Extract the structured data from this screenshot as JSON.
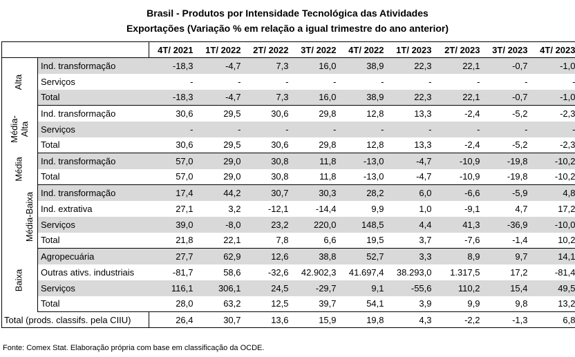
{
  "title_line1": "Brasil - Produtos por Intensidade Tecnológica das Atividades",
  "title_line2": "Exportações (Variação % em relação a igual trimestre do ano anterior)",
  "columns": [
    "4T/ 2021",
    "1T/ 2022",
    "2T/ 2022",
    "3T/ 2022",
    "4T/ 2022",
    "1T/ 2023",
    "2T/ 2023",
    "3T/ 2023",
    "4T/ 2023"
  ],
  "groups": [
    {
      "label": "Alta",
      "rows": [
        {
          "label": "Ind. transformação",
          "shade": true,
          "values": [
            "-18,3",
            "-4,7",
            "7,3",
            "16,0",
            "38,9",
            "22,3",
            "22,1",
            "-0,7",
            "-1,0"
          ]
        },
        {
          "label": "Serviços",
          "shade": false,
          "values": [
            "-",
            "-",
            "-",
            "-",
            "-",
            "-",
            "-",
            "-",
            "-"
          ]
        },
        {
          "label": "Total",
          "shade": true,
          "values": [
            "-18,3",
            "-4,7",
            "7,3",
            "16,0",
            "38,9",
            "22,3",
            "22,1",
            "-0,7",
            "-1,0"
          ]
        }
      ]
    },
    {
      "label": "Média-Alta",
      "label_a": "Média-",
      "label_b": "Alta",
      "rows": [
        {
          "label": "Ind. transformação",
          "shade": false,
          "values": [
            "30,6",
            "29,5",
            "30,6",
            "29,8",
            "12,8",
            "13,3",
            "-2,4",
            "-5,2",
            "-2,3"
          ]
        },
        {
          "label": "Serviços",
          "shade": true,
          "values": [
            "-",
            "-",
            "-",
            "-",
            "-",
            "-",
            "-",
            "-",
            "-"
          ]
        },
        {
          "label": "Total",
          "shade": false,
          "values": [
            "30,6",
            "29,5",
            "30,6",
            "29,8",
            "12,8",
            "13,3",
            "-2,4",
            "-5,2",
            "-2,3"
          ]
        }
      ]
    },
    {
      "label": "Média",
      "rows": [
        {
          "label": "Ind. transformação",
          "shade": true,
          "values": [
            "57,0",
            "29,0",
            "30,8",
            "11,8",
            "-13,0",
            "-4,7",
            "-10,9",
            "-19,8",
            "-10,2"
          ]
        },
        {
          "label": "Total",
          "shade": false,
          "values": [
            "57,0",
            "29,0",
            "30,8",
            "11,8",
            "-13,0",
            "-4,7",
            "-10,9",
            "-19,8",
            "-10,2"
          ]
        }
      ]
    },
    {
      "label": "Média-Baixa",
      "rows": [
        {
          "label": "Ind. transformação",
          "shade": true,
          "values": [
            "17,4",
            "44,2",
            "30,7",
            "30,3",
            "28,2",
            "6,0",
            "-6,6",
            "-5,9",
            "4,8"
          ]
        },
        {
          "label": "Ind. extrativa",
          "shade": false,
          "values": [
            "27,1",
            "3,2",
            "-12,1",
            "-14,4",
            "9,9",
            "1,0",
            "-9,1",
            "4,7",
            "17,2"
          ]
        },
        {
          "label": "Serviços",
          "shade": true,
          "values": [
            "39,0",
            "-8,0",
            "23,2",
            "220,0",
            "148,5",
            "4,4",
            "41,3",
            "-36,9",
            "-10,0"
          ]
        },
        {
          "label": "Total",
          "shade": false,
          "values": [
            "21,8",
            "22,1",
            "7,8",
            "6,6",
            "19,5",
            "3,7",
            "-7,6",
            "-1,4",
            "10,2"
          ]
        }
      ]
    },
    {
      "label": "Baixa",
      "rows": [
        {
          "label": "Agropecuária",
          "shade": true,
          "values": [
            "27,7",
            "62,9",
            "12,6",
            "38,8",
            "52,7",
            "3,3",
            "8,9",
            "9,7",
            "14,1"
          ]
        },
        {
          "label": "Outras ativs. industriais",
          "shade": false,
          "values": [
            "-81,7",
            "58,6",
            "-32,6",
            "42.902,3",
            "41.697,4",
            "38.293,0",
            "1.317,5",
            "17,2",
            "-81,4"
          ]
        },
        {
          "label": "Serviços",
          "shade": true,
          "values": [
            "116,1",
            "306,1",
            "24,5",
            "-29,7",
            "9,1",
            "-55,6",
            "110,2",
            "15,4",
            "49,5"
          ]
        },
        {
          "label": "Total",
          "shade": false,
          "values": [
            "28,0",
            "63,2",
            "12,5",
            "39,7",
            "54,1",
            "3,9",
            "9,9",
            "9,8",
            "13,2"
          ]
        }
      ]
    }
  ],
  "total": {
    "label": "Total (prods. classifs. pela CIIU)",
    "values": [
      "26,4",
      "30,7",
      "13,6",
      "15,9",
      "19,8",
      "4,3",
      "-2,2",
      "-1,3",
      "6,8"
    ]
  },
  "source": "Fonte: Comex Stat. Elaboração própria com base em classificação da OCDE."
}
